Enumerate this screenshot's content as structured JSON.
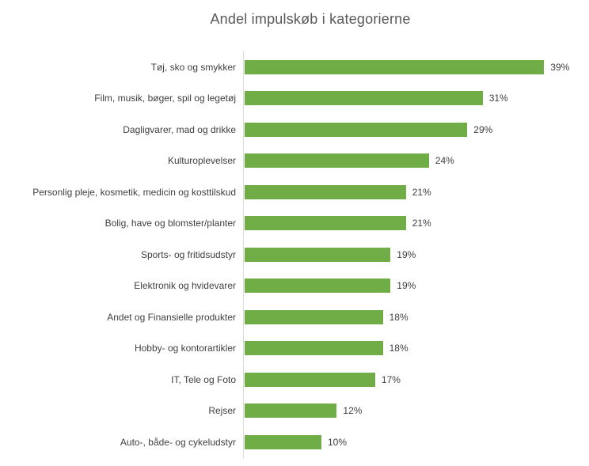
{
  "chart_data": {
    "type": "bar",
    "orientation": "horizontal",
    "title": "Andel impulskøb i kategorierne",
    "categories": [
      "Tøj, sko og smykker",
      "Film, musik, bøger, spil og legetøj",
      "Dagligvarer, mad og drikke",
      "Kulturoplevelser",
      "Personlig pleje, kosmetik, medicin og kosttilskud",
      "Bolig, have og blomster/planter",
      "Sports- og fritidsudstyr",
      "Elektronik og hvidevarer",
      "Andet og Finansielle produkter",
      "Hobby- og kontorartikler",
      "IT, Tele og Foto",
      "Rejser",
      "Auto-, både- og cykeludstyr"
    ],
    "values": [
      39,
      31,
      29,
      24,
      21,
      21,
      19,
      19,
      18,
      18,
      17,
      12,
      10
    ],
    "value_labels": [
      "39%",
      "31%",
      "29%",
      "24%",
      "21%",
      "21%",
      "19%",
      "19%",
      "18%",
      "18%",
      "17%",
      "12%",
      "10%"
    ],
    "value_suffix": "%",
    "xlabel": "",
    "ylabel": "",
    "xlim": [
      0,
      40
    ],
    "grid": false,
    "legend": "none",
    "bar_color": "#70ad47",
    "axis_line_color": "#d9d9d9",
    "title_color": "#595959",
    "label_color": "#404040"
  }
}
